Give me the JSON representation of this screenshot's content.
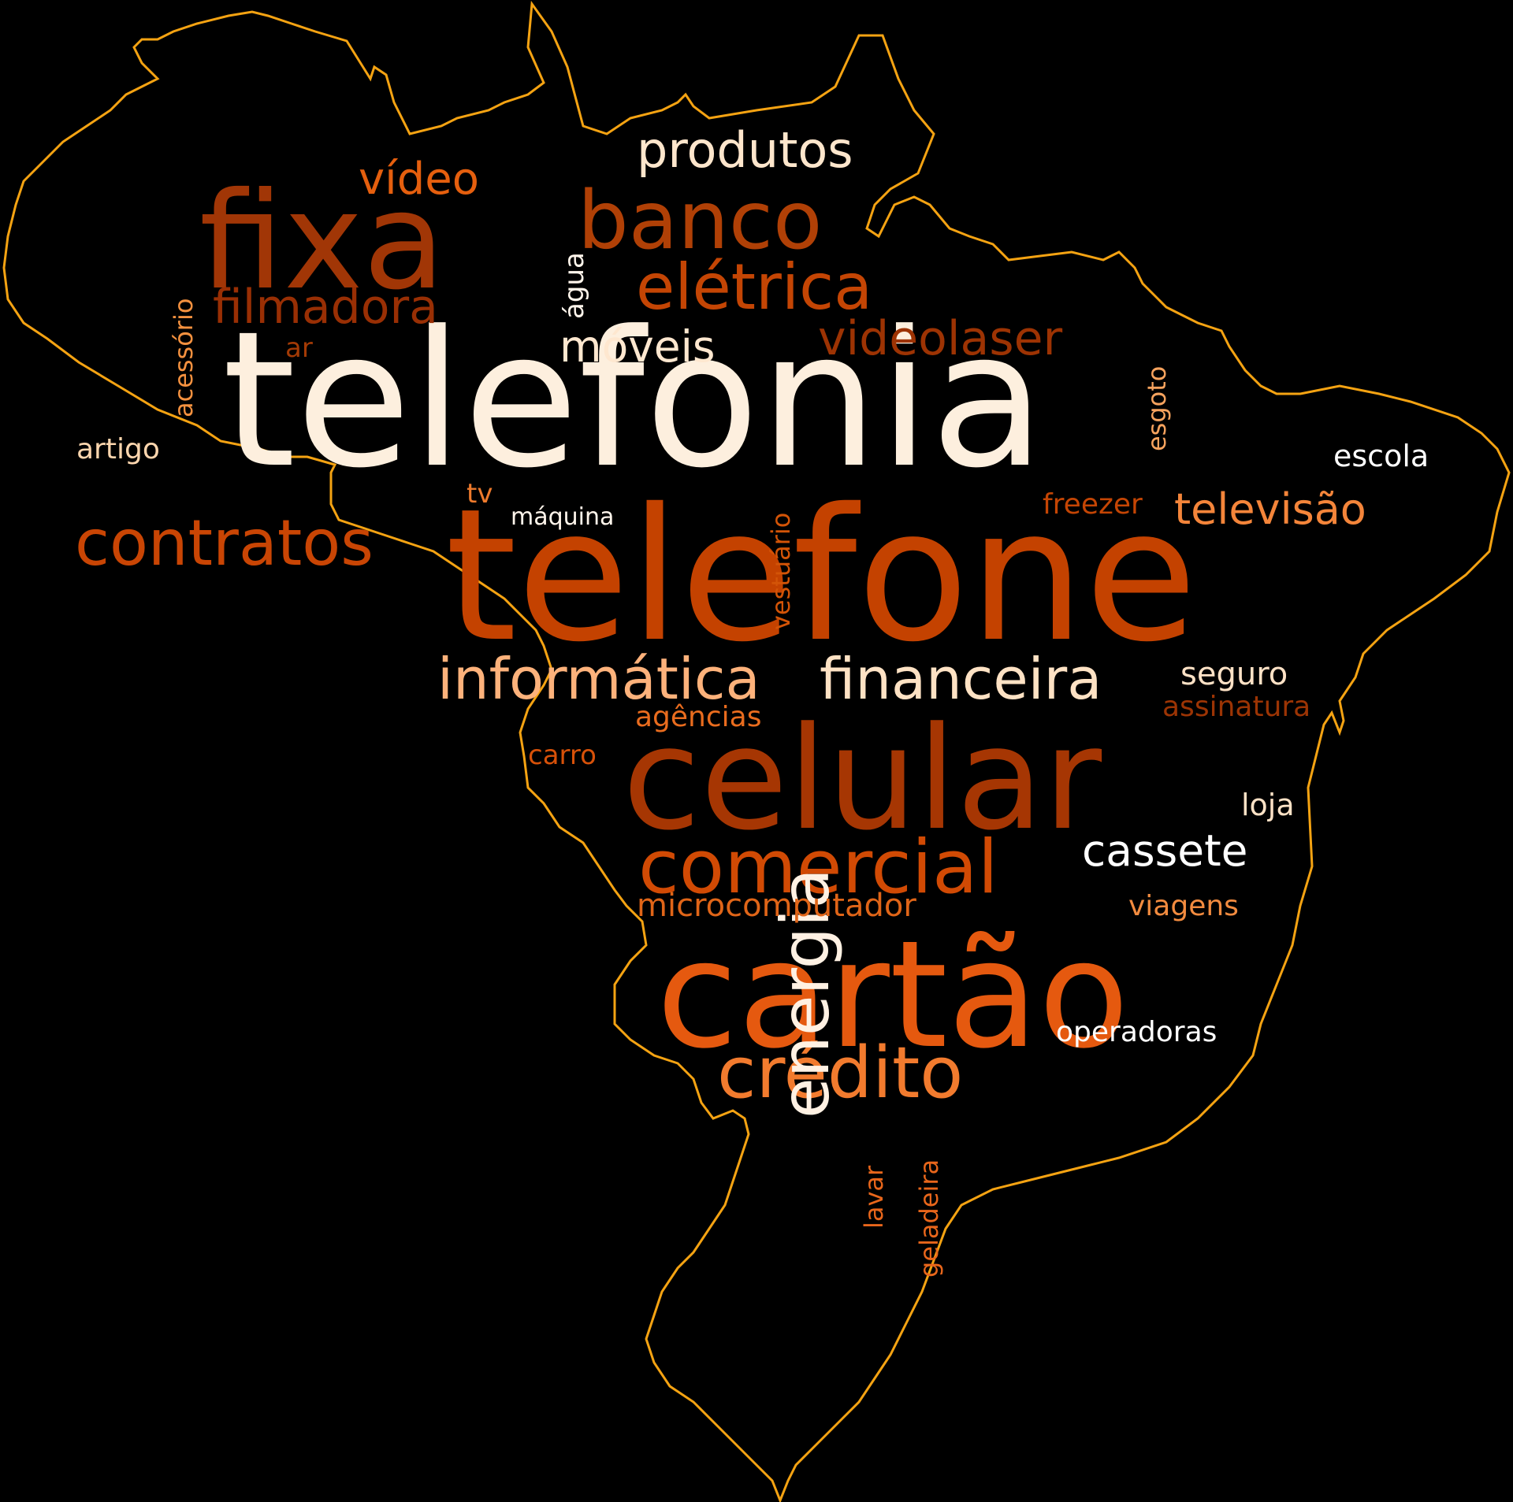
{
  "map": {
    "outline_color": "#f5a312",
    "background": "#000000"
  },
  "words": [
    {
      "id": "telefonia",
      "text": "telefonia",
      "color": "#fdefde"
    },
    {
      "id": "telefone",
      "text": "telefone",
      "color": "#c44200"
    },
    {
      "id": "celular",
      "text": "celular",
      "color": "#a63603"
    },
    {
      "id": "cartao",
      "text": "cartão",
      "color": "#e5590f"
    },
    {
      "id": "fixa",
      "text": "fixa",
      "color": "#a13606"
    },
    {
      "id": "banco",
      "text": "banco",
      "color": "#b04006"
    },
    {
      "id": "comercial",
      "text": "comercial",
      "color": "#d14a04"
    },
    {
      "id": "contratos",
      "text": "contratos",
      "color": "#c94504"
    },
    {
      "id": "credito",
      "text": "crédito",
      "color": "#f27b2e"
    },
    {
      "id": "informatica",
      "text": "informática",
      "color": "#fdb27b"
    },
    {
      "id": "financeira",
      "text": "financeira",
      "color": "#fee2c4"
    },
    {
      "id": "eletrica",
      "text": "elétrica",
      "color": "#c44504"
    },
    {
      "id": "produtos",
      "text": "produtos",
      "color": "#fee6cc"
    },
    {
      "id": "energia",
      "text": "energia",
      "color": "#fff1e3"
    },
    {
      "id": "televisao",
      "text": "televisão",
      "color": "#f4853a"
    },
    {
      "id": "videolaser",
      "text": "videolaser",
      "color": "#9d3303"
    },
    {
      "id": "filmadora",
      "text": "filmadora",
      "color": "#992f04"
    },
    {
      "id": "video",
      "text": "vídeo",
      "color": "#e55f0e"
    },
    {
      "id": "moveis",
      "text": "móveis",
      "color": "#fee7cf"
    },
    {
      "id": "cassete",
      "text": "cassete",
      "color": "#ffffff"
    },
    {
      "id": "microcomputador",
      "text": "microcomputador",
      "color": "#e06518"
    },
    {
      "id": "seguro",
      "text": "seguro",
      "color": "#fee2c6"
    },
    {
      "id": "escola",
      "text": "escola",
      "color": "#ffffff"
    },
    {
      "id": "artigo",
      "text": "artigo",
      "color": "#fdd6ae"
    },
    {
      "id": "operadoras",
      "text": "operadoras",
      "color": "#ffffff"
    },
    {
      "id": "loja",
      "text": "loja",
      "color": "#fee2c6"
    },
    {
      "id": "agencias",
      "text": "agências",
      "color": "#e96c1e"
    },
    {
      "id": "assinatura",
      "text": "assinatura",
      "color": "#9c3404"
    },
    {
      "id": "freezer",
      "text": "freezer",
      "color": "#c44504"
    },
    {
      "id": "viagens",
      "text": "viagens",
      "color": "#f28b3f"
    },
    {
      "id": "carro",
      "text": "carro",
      "color": "#d75109"
    },
    {
      "id": "maquina",
      "text": "máquina",
      "color": "#fff5eb"
    },
    {
      "id": "tv",
      "text": "tv",
      "color": "#ee7a2c"
    },
    {
      "id": "ar",
      "text": "ar",
      "color": "#a33a05"
    },
    {
      "id": "agua",
      "text": "água",
      "color": "#fff5eb"
    },
    {
      "id": "acessorio",
      "text": "acessório",
      "color": "#f4913f"
    },
    {
      "id": "esgoto",
      "text": "esgoto",
      "color": "#f7a35e"
    },
    {
      "id": "vestuario",
      "text": "vestuário",
      "color": "#d35407"
    },
    {
      "id": "lavar",
      "text": "lavar",
      "color": "#e8661b"
    },
    {
      "id": "geladeira",
      "text": "geladeira",
      "color": "#e8661b"
    }
  ]
}
